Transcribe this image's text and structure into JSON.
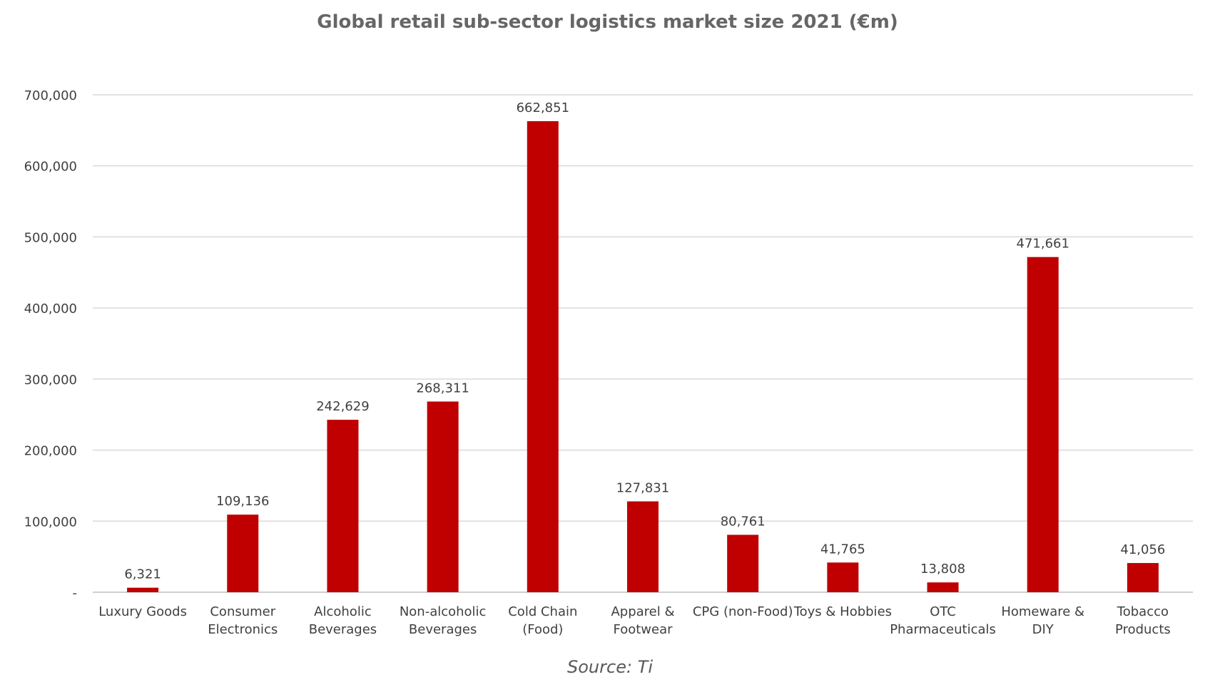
{
  "chart_data": {
    "type": "bar",
    "title": "Global retail sub-sector logistics market size 2021 (€m)",
    "xlabel": "",
    "ylabel": "",
    "ylim": [
      0,
      700000
    ],
    "yticks": [
      0,
      100000,
      200000,
      300000,
      400000,
      500000,
      600000,
      700000
    ],
    "ytick_labels": [
      "-",
      "100,000",
      "200,000",
      "300,000",
      "400,000",
      "500,000",
      "600,000",
      "700,000"
    ],
    "grid": true,
    "bar_color": "#C00000",
    "categories": [
      [
        "Luxury Goods"
      ],
      [
        "Consumer",
        "Electronics"
      ],
      [
        "Alcoholic",
        "Beverages"
      ],
      [
        "Non-alcoholic",
        "Beverages"
      ],
      [
        "Cold Chain",
        "(Food)"
      ],
      [
        "Apparel &",
        "Footwear"
      ],
      [
        "CPG (non-Food)"
      ],
      [
        "Toys & Hobbies"
      ],
      [
        "OTC",
        "Pharmaceuticals"
      ],
      [
        "Homeware &",
        "DIY"
      ],
      [
        "Tobacco",
        "Products"
      ]
    ],
    "values": [
      6321,
      109136,
      242629,
      268311,
      662851,
      127831,
      80761,
      41765,
      13808,
      471661,
      41056
    ],
    "data_labels": [
      "6,321",
      "109,136",
      "242,629",
      "268,311",
      "662,851",
      "127,831",
      "80,761",
      "41,765",
      "13,808",
      "471,661",
      "41,056"
    ]
  },
  "source": "Source: Ti"
}
